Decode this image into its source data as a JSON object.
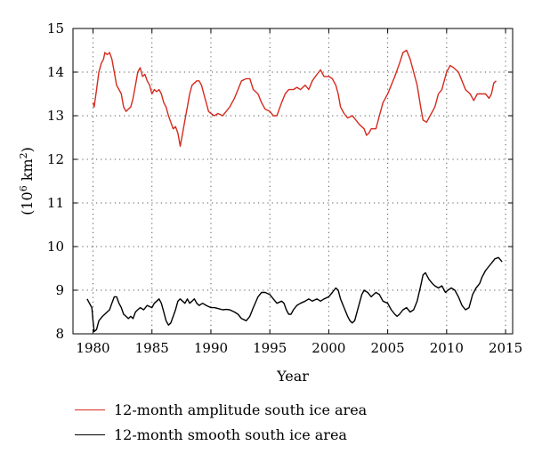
{
  "chart_data": {
    "type": "line",
    "title": "",
    "xlabel": "Year",
    "ylabel_base": "(10",
    "ylabel_exp1": "6",
    "ylabel_mid": " km",
    "ylabel_exp2": "2",
    "ylabel_end": ")",
    "xlim": [
      1978.3,
      2015.6
    ],
    "ylim": [
      8,
      15
    ],
    "xticks": [
      1980,
      1985,
      1990,
      1995,
      2000,
      2005,
      2010,
      2015
    ],
    "yticks": [
      8,
      9,
      10,
      11,
      12,
      13,
      14,
      15
    ],
    "grid": true,
    "legend_position": "below",
    "series": [
      {
        "name": "12-month amplitude south ice area",
        "color": "#d62a1e",
        "points": [
          [
            1980.0,
            13.3
          ],
          [
            1980.1,
            13.2
          ],
          [
            1980.3,
            13.6
          ],
          [
            1980.5,
            14.0
          ],
          [
            1980.7,
            14.2
          ],
          [
            1980.9,
            14.3
          ],
          [
            1981.0,
            14.45
          ],
          [
            1981.2,
            14.4
          ],
          [
            1981.4,
            14.45
          ],
          [
            1981.6,
            14.3
          ],
          [
            1981.8,
            14.0
          ],
          [
            1982.0,
            13.7
          ],
          [
            1982.2,
            13.6
          ],
          [
            1982.4,
            13.5
          ],
          [
            1982.6,
            13.2
          ],
          [
            1982.8,
            13.1
          ],
          [
            1983.0,
            13.15
          ],
          [
            1983.2,
            13.2
          ],
          [
            1983.4,
            13.4
          ],
          [
            1983.6,
            13.7
          ],
          [
            1983.8,
            14.0
          ],
          [
            1984.0,
            14.1
          ],
          [
            1984.2,
            13.9
          ],
          [
            1984.4,
            13.95
          ],
          [
            1984.6,
            13.8
          ],
          [
            1984.8,
            13.7
          ],
          [
            1985.0,
            13.5
          ],
          [
            1985.2,
            13.6
          ],
          [
            1985.4,
            13.55
          ],
          [
            1985.6,
            13.6
          ],
          [
            1985.8,
            13.5
          ],
          [
            1986.0,
            13.3
          ],
          [
            1986.2,
            13.2
          ],
          [
            1986.4,
            13.0
          ],
          [
            1986.6,
            12.85
          ],
          [
            1986.8,
            12.7
          ],
          [
            1987.0,
            12.75
          ],
          [
            1987.2,
            12.6
          ],
          [
            1987.4,
            12.3
          ],
          [
            1987.6,
            12.6
          ],
          [
            1987.8,
            12.9
          ],
          [
            1988.0,
            13.2
          ],
          [
            1988.2,
            13.5
          ],
          [
            1988.4,
            13.7
          ],
          [
            1988.6,
            13.75
          ],
          [
            1988.8,
            13.8
          ],
          [
            1989.0,
            13.8
          ],
          [
            1989.2,
            13.7
          ],
          [
            1989.4,
            13.5
          ],
          [
            1989.6,
            13.3
          ],
          [
            1989.8,
            13.1
          ],
          [
            1990.0,
            13.05
          ],
          [
            1990.3,
            13.0
          ],
          [
            1990.6,
            13.05
          ],
          [
            1991.0,
            13.0
          ],
          [
            1991.3,
            13.1
          ],
          [
            1991.6,
            13.2
          ],
          [
            1992.0,
            13.4
          ],
          [
            1992.3,
            13.6
          ],
          [
            1992.6,
            13.8
          ],
          [
            1993.0,
            13.85
          ],
          [
            1993.3,
            13.85
          ],
          [
            1993.6,
            13.6
          ],
          [
            1994.0,
            13.5
          ],
          [
            1994.3,
            13.3
          ],
          [
            1994.6,
            13.15
          ],
          [
            1995.0,
            13.1
          ],
          [
            1995.3,
            13.0
          ],
          [
            1995.6,
            13.0
          ],
          [
            1996.0,
            13.3
          ],
          [
            1996.3,
            13.5
          ],
          [
            1996.6,
            13.6
          ],
          [
            1997.0,
            13.6
          ],
          [
            1997.3,
            13.65
          ],
          [
            1997.6,
            13.6
          ],
          [
            1998.0,
            13.7
          ],
          [
            1998.3,
            13.6
          ],
          [
            1998.6,
            13.8
          ],
          [
            1999.0,
            13.95
          ],
          [
            1999.3,
            14.05
          ],
          [
            1999.6,
            13.9
          ],
          [
            2000.0,
            13.9
          ],
          [
            2000.3,
            13.85
          ],
          [
            2000.6,
            13.7
          ],
          [
            2000.8,
            13.5
          ],
          [
            2001.0,
            13.2
          ],
          [
            2001.3,
            13.05
          ],
          [
            2001.6,
            12.95
          ],
          [
            2002.0,
            13.0
          ],
          [
            2002.3,
            12.9
          ],
          [
            2002.6,
            12.8
          ],
          [
            2003.0,
            12.7
          ],
          [
            2003.2,
            12.55
          ],
          [
            2003.4,
            12.6
          ],
          [
            2003.6,
            12.7
          ],
          [
            2004.0,
            12.7
          ],
          [
            2004.3,
            13.0
          ],
          [
            2004.6,
            13.3
          ],
          [
            2005.0,
            13.5
          ],
          [
            2005.3,
            13.7
          ],
          [
            2005.6,
            13.9
          ],
          [
            2006.0,
            14.2
          ],
          [
            2006.3,
            14.45
          ],
          [
            2006.6,
            14.5
          ],
          [
            2006.9,
            14.3
          ],
          [
            2007.2,
            14.0
          ],
          [
            2007.5,
            13.7
          ],
          [
            2007.8,
            13.2
          ],
          [
            2008.0,
            12.9
          ],
          [
            2008.3,
            12.85
          ],
          [
            2008.6,
            13.0
          ],
          [
            2009.0,
            13.2
          ],
          [
            2009.3,
            13.5
          ],
          [
            2009.6,
            13.6
          ],
          [
            2010.0,
            14.0
          ],
          [
            2010.3,
            14.15
          ],
          [
            2010.6,
            14.1
          ],
          [
            2011.0,
            14.0
          ],
          [
            2011.3,
            13.8
          ],
          [
            2011.6,
            13.6
          ],
          [
            2012.0,
            13.5
          ],
          [
            2012.3,
            13.35
          ],
          [
            2012.6,
            13.5
          ],
          [
            2013.0,
            13.5
          ],
          [
            2013.3,
            13.5
          ],
          [
            2013.6,
            13.4
          ],
          [
            2013.8,
            13.5
          ],
          [
            2014.0,
            13.75
          ],
          [
            2014.2,
            13.8
          ]
        ]
      },
      {
        "name": "12-month smooth south ice area",
        "color": "#000000",
        "points": [
          [
            1979.5,
            8.8
          ],
          [
            1979.7,
            8.7
          ],
          [
            1979.9,
            8.6
          ],
          [
            1980.0,
            8.3
          ],
          [
            1980.1,
            8.05
          ],
          [
            1980.3,
            8.1
          ],
          [
            1980.5,
            8.3
          ],
          [
            1980.8,
            8.4
          ],
          [
            1981.0,
            8.45
          ],
          [
            1981.2,
            8.5
          ],
          [
            1981.4,
            8.55
          ],
          [
            1981.6,
            8.7
          ],
          [
            1981.8,
            8.85
          ],
          [
            1982.0,
            8.85
          ],
          [
            1982.2,
            8.7
          ],
          [
            1982.4,
            8.6
          ],
          [
            1982.6,
            8.45
          ],
          [
            1982.8,
            8.4
          ],
          [
            1983.0,
            8.35
          ],
          [
            1983.2,
            8.4
          ],
          [
            1983.4,
            8.35
          ],
          [
            1983.6,
            8.5
          ],
          [
            1983.8,
            8.55
          ],
          [
            1984.0,
            8.6
          ],
          [
            1984.3,
            8.55
          ],
          [
            1984.6,
            8.65
          ],
          [
            1985.0,
            8.6
          ],
          [
            1985.2,
            8.7
          ],
          [
            1985.4,
            8.75
          ],
          [
            1985.6,
            8.8
          ],
          [
            1985.8,
            8.7
          ],
          [
            1986.0,
            8.5
          ],
          [
            1986.2,
            8.3
          ],
          [
            1986.4,
            8.2
          ],
          [
            1986.6,
            8.25
          ],
          [
            1986.8,
            8.4
          ],
          [
            1987.0,
            8.55
          ],
          [
            1987.2,
            8.75
          ],
          [
            1987.4,
            8.8
          ],
          [
            1987.6,
            8.75
          ],
          [
            1987.8,
            8.7
          ],
          [
            1988.0,
            8.8
          ],
          [
            1988.2,
            8.7
          ],
          [
            1988.4,
            8.75
          ],
          [
            1988.6,
            8.8
          ],
          [
            1988.8,
            8.7
          ],
          [
            1989.0,
            8.65
          ],
          [
            1989.3,
            8.7
          ],
          [
            1989.6,
            8.65
          ],
          [
            1990.0,
            8.6
          ],
          [
            1990.3,
            8.6
          ],
          [
            1990.6,
            8.58
          ],
          [
            1991.0,
            8.55
          ],
          [
            1991.3,
            8.56
          ],
          [
            1991.6,
            8.55
          ],
          [
            1992.0,
            8.5
          ],
          [
            1992.3,
            8.45
          ],
          [
            1992.6,
            8.35
          ],
          [
            1993.0,
            8.3
          ],
          [
            1993.3,
            8.4
          ],
          [
            1993.6,
            8.6
          ],
          [
            1994.0,
            8.85
          ],
          [
            1994.3,
            8.95
          ],
          [
            1994.6,
            8.95
          ],
          [
            1995.0,
            8.9
          ],
          [
            1995.3,
            8.8
          ],
          [
            1995.6,
            8.7
          ],
          [
            1996.0,
            8.75
          ],
          [
            1996.2,
            8.7
          ],
          [
            1996.4,
            8.55
          ],
          [
            1996.6,
            8.45
          ],
          [
            1996.8,
            8.45
          ],
          [
            1997.0,
            8.55
          ],
          [
            1997.3,
            8.65
          ],
          [
            1997.6,
            8.7
          ],
          [
            1998.0,
            8.75
          ],
          [
            1998.3,
            8.8
          ],
          [
            1998.6,
            8.75
          ],
          [
            1999.0,
            8.8
          ],
          [
            1999.3,
            8.75
          ],
          [
            1999.6,
            8.8
          ],
          [
            2000.0,
            8.85
          ],
          [
            2000.3,
            8.95
          ],
          [
            2000.6,
            9.05
          ],
          [
            2000.8,
            9.0
          ],
          [
            2001.0,
            8.8
          ],
          [
            2001.3,
            8.6
          ],
          [
            2001.6,
            8.4
          ],
          [
            2001.8,
            8.3
          ],
          [
            2002.0,
            8.25
          ],
          [
            2002.2,
            8.3
          ],
          [
            2002.5,
            8.6
          ],
          [
            2002.8,
            8.9
          ],
          [
            2003.0,
            9.0
          ],
          [
            2003.3,
            8.95
          ],
          [
            2003.6,
            8.85
          ],
          [
            2004.0,
            8.95
          ],
          [
            2004.3,
            8.9
          ],
          [
            2004.6,
            8.75
          ],
          [
            2005.0,
            8.7
          ],
          [
            2005.3,
            8.55
          ],
          [
            2005.6,
            8.45
          ],
          [
            2005.8,
            8.4
          ],
          [
            2006.0,
            8.45
          ],
          [
            2006.3,
            8.55
          ],
          [
            2006.6,
            8.6
          ],
          [
            2006.9,
            8.5
          ],
          [
            2007.2,
            8.55
          ],
          [
            2007.5,
            8.75
          ],
          [
            2007.8,
            9.1
          ],
          [
            2008.0,
            9.35
          ],
          [
            2008.2,
            9.4
          ],
          [
            2008.5,
            9.25
          ],
          [
            2008.8,
            9.15
          ],
          [
            2009.0,
            9.1
          ],
          [
            2009.3,
            9.05
          ],
          [
            2009.6,
            9.1
          ],
          [
            2009.9,
            8.95
          ],
          [
            2010.1,
            9.0
          ],
          [
            2010.4,
            9.05
          ],
          [
            2010.7,
            9.0
          ],
          [
            2011.0,
            8.85
          ],
          [
            2011.3,
            8.65
          ],
          [
            2011.6,
            8.55
          ],
          [
            2011.9,
            8.6
          ],
          [
            2012.2,
            8.9
          ],
          [
            2012.5,
            9.05
          ],
          [
            2012.8,
            9.15
          ],
          [
            2013.0,
            9.3
          ],
          [
            2013.3,
            9.45
          ],
          [
            2013.6,
            9.55
          ],
          [
            2013.9,
            9.65
          ],
          [
            2014.1,
            9.72
          ],
          [
            2014.4,
            9.75
          ],
          [
            2014.7,
            9.65
          ]
        ]
      }
    ]
  }
}
